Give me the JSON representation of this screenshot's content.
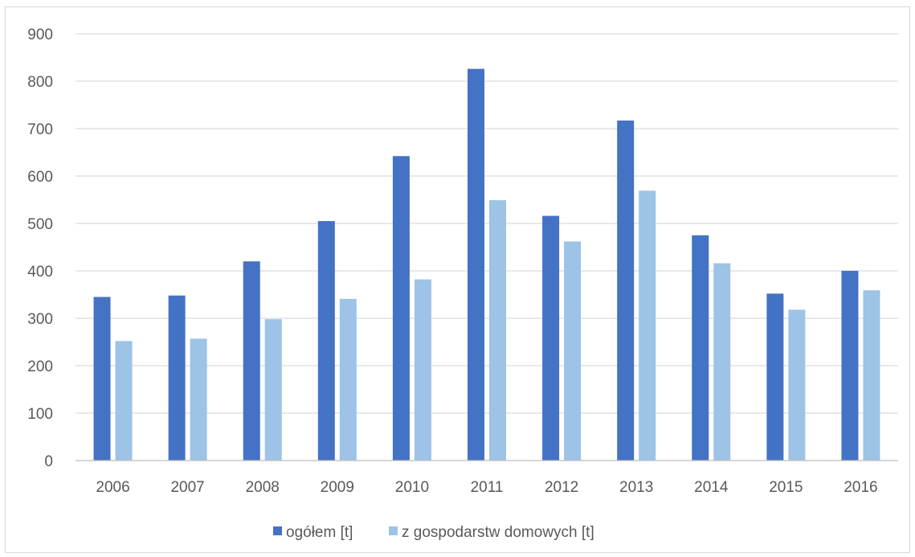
{
  "chart_data": {
    "type": "bar",
    "title": "",
    "xlabel": "",
    "ylabel": "",
    "categories": [
      "2006",
      "2007",
      "2008",
      "2009",
      "2010",
      "2011",
      "2012",
      "2013",
      "2014",
      "2015",
      "2016"
    ],
    "series": [
      {
        "name": "ogółem [t]",
        "color": "#4472c4",
        "values": [
          345,
          348,
          420,
          505,
          642,
          826,
          516,
          717,
          475,
          352,
          400
        ]
      },
      {
        "name": "z gospodarstw domowych [t]",
        "color": "#9dc3e6",
        "values": [
          252,
          257,
          298,
          341,
          382,
          549,
          462,
          569,
          416,
          318,
          359
        ]
      }
    ],
    "ylim": [
      0,
      900
    ],
    "yticks": [
      0,
      100,
      200,
      300,
      400,
      500,
      600,
      700,
      800,
      900
    ],
    "grid": true,
    "legend_position": "bottom"
  },
  "colors": {
    "gridline": "#d9d9d9",
    "axis": "#bfbfbf",
    "text": "#595959"
  }
}
